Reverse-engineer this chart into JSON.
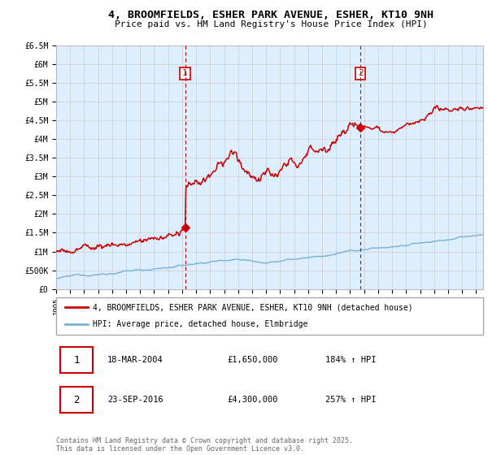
{
  "title_line1": "4, BROOMFIELDS, ESHER PARK AVENUE, ESHER, KT10 9NH",
  "title_line2": "Price paid vs. HM Land Registry's House Price Index (HPI)",
  "ylim": [
    0,
    6500000
  ],
  "yticks": [
    0,
    500000,
    1000000,
    1500000,
    2000000,
    2500000,
    3000000,
    3500000,
    4000000,
    4500000,
    5000000,
    5500000,
    6000000,
    6500000
  ],
  "ytick_labels": [
    "£0",
    "£500K",
    "£1M",
    "£1.5M",
    "£2M",
    "£2.5M",
    "£3M",
    "£3.5M",
    "£4M",
    "£4.5M",
    "£5M",
    "£5.5M",
    "£6M",
    "£6.5M"
  ],
  "xlim_start": 1995.0,
  "xlim_end": 2025.5,
  "purchase1_x": 2004.21,
  "purchase1_y": 1650000,
  "purchase2_x": 2016.73,
  "purchase2_y": 4300000,
  "line_color_property": "#cc0000",
  "line_color_hpi": "#7ab0d4",
  "legend_property": "4, BROOMFIELDS, ESHER PARK AVENUE, ESHER, KT10 9NH (detached house)",
  "legend_hpi": "HPI: Average price, detached house, Elmbridge",
  "annotation1_date": "18-MAR-2004",
  "annotation1_price": "£1,650,000",
  "annotation1_hpi": "184% ↑ HPI",
  "annotation2_date": "23-SEP-2016",
  "annotation2_price": "£4,300,000",
  "annotation2_hpi": "257% ↑ HPI",
  "footer": "Contains HM Land Registry data © Crown copyright and database right 2025.\nThis data is licensed under the Open Government Licence v3.0.",
  "bg_color": "#ddeeff",
  "fig_bg": "#ffffff"
}
